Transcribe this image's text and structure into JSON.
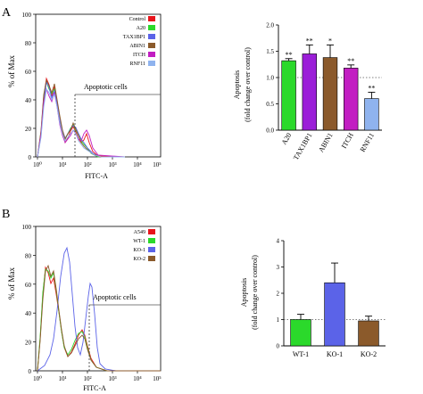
{
  "panels": [
    {
      "label": "A",
      "histogram": {
        "ylabel": "% of Max",
        "xlabel": "FITC-A",
        "y_ticks": [
          "0",
          "20",
          "40",
          "60",
          "80",
          "100"
        ],
        "x_ticks": [
          "10⁰",
          "10¹",
          "10²",
          "10³",
          "10⁴",
          "10⁵"
        ],
        "gate_label": "Apoptotic cells",
        "legend": [
          {
            "name": "Control",
            "color": "#e8141b"
          },
          {
            "name": "A20",
            "color": "#2bd92b"
          },
          {
            "name": "TAX1BP1",
            "color": "#5b63e8"
          },
          {
            "name": "ABIN1",
            "color": "#8b5a2b"
          },
          {
            "name": "ITCH",
            "color": "#c21ec2"
          },
          {
            "name": "RNF11",
            "color": "#8fb3ee"
          }
        ]
      },
      "bars": {
        "ylabel_line1": "Apoptosis",
        "ylabel_line2": "(fold change over control)",
        "y_ticks": [
          "0.0",
          "0.5",
          "1.0",
          "1.5",
          "2.0"
        ],
        "significance": [
          "**",
          "**",
          "*",
          "**",
          "**"
        ]
      }
    },
    {
      "label": "B",
      "histogram": {
        "ylabel": "% of Max",
        "xlabel": "FITC-A",
        "y_ticks": [
          "0",
          "20",
          "40",
          "60",
          "80",
          "100"
        ],
        "x_ticks": [
          "10⁰",
          "10¹",
          "10²",
          "10³",
          "10⁴",
          "10⁵"
        ],
        "gate_label": "Apoptotic cells",
        "legend": [
          {
            "name": "A549",
            "color": "#e8141b"
          },
          {
            "name": "WT-1",
            "color": "#2bd92b"
          },
          {
            "name": "KO-1",
            "color": "#5b63e8"
          },
          {
            "name": "KO-2",
            "color": "#8b5a2b"
          }
        ]
      },
      "bars": {
        "ylabel_line1": "Apoptosis",
        "ylabel_line2": "(fold change over control)",
        "y_ticks": [
          "0",
          "1",
          "2",
          "3",
          "4"
        ],
        "significance": []
      }
    }
  ],
  "chart_data": [
    {
      "type": "bar",
      "categories": [
        "A20",
        "TAX1BP1",
        "ABIN1",
        "ITCH",
        "RNF11"
      ],
      "values": [
        1.32,
        1.45,
        1.38,
        1.18,
        0.6
      ],
      "errors": [
        0.04,
        0.17,
        0.24,
        0.06,
        0.12
      ],
      "colors": [
        "#2bd92b",
        "#9b1ed8",
        "#8b5a2b",
        "#c21ec2",
        "#8fb3ee"
      ],
      "reference_line": 1.0,
      "ylim": [
        0,
        2
      ],
      "xlabel": "",
      "ylabel": "Apoptosis (fold change over control)"
    },
    {
      "type": "bar",
      "categories": [
        "WT-1",
        "KO-1",
        "KO-2"
      ],
      "values": [
        1.0,
        2.4,
        0.95
      ],
      "errors": [
        0.2,
        0.75,
        0.18
      ],
      "colors": [
        "#2bd92b",
        "#5b63e8",
        "#8b5a2b"
      ],
      "reference_line": 1.0,
      "ylim": [
        0,
        4
      ],
      "xlabel": "",
      "ylabel": "Apoptosis (fold change over control)"
    }
  ]
}
